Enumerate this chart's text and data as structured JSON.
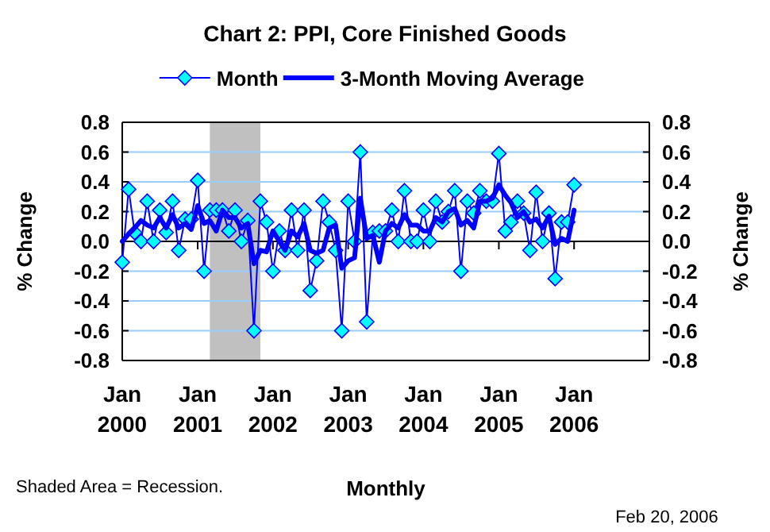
{
  "chart_data": {
    "type": "line",
    "title": "Chart 2: PPI, Core Finished Goods",
    "x": [
      "2000-01",
      "2000-02",
      "2000-03",
      "2000-04",
      "2000-05",
      "2000-06",
      "2000-07",
      "2000-08",
      "2000-09",
      "2000-10",
      "2000-11",
      "2000-12",
      "2001-01",
      "2001-02",
      "2001-03",
      "2001-04",
      "2001-05",
      "2001-06",
      "2001-07",
      "2001-08",
      "2001-09",
      "2001-10",
      "2001-11",
      "2001-12",
      "2002-01",
      "2002-02",
      "2002-03",
      "2002-04",
      "2002-05",
      "2002-06",
      "2002-07",
      "2002-08",
      "2002-09",
      "2002-10",
      "2002-11",
      "2002-12",
      "2003-01",
      "2003-02",
      "2003-03",
      "2003-04",
      "2003-05",
      "2003-06",
      "2003-07",
      "2003-08",
      "2003-09",
      "2003-10",
      "2003-11",
      "2003-12",
      "2004-01",
      "2004-02",
      "2004-03",
      "2004-04",
      "2004-05",
      "2004-06",
      "2004-07",
      "2004-08",
      "2004-09",
      "2004-10",
      "2004-11",
      "2004-12",
      "2005-01",
      "2005-02",
      "2005-03",
      "2005-04",
      "2005-05",
      "2005-06",
      "2005-07",
      "2005-08",
      "2005-09",
      "2005-10",
      "2005-11",
      "2005-12",
      "2006-01"
    ],
    "series": [
      {
        "name": "Month",
        "color": "#0000ff",
        "marker": "diamond",
        "values": [
          -0.14,
          0.35,
          0.06,
          0.0,
          0.27,
          0.0,
          0.21,
          0.06,
          0.27,
          -0.06,
          0.15,
          0.15,
          0.41,
          -0.2,
          0.21,
          0.21,
          0.21,
          0.07,
          0.21,
          0.0,
          0.14,
          -0.6,
          0.27,
          0.13,
          -0.2,
          0.07,
          -0.06,
          0.21,
          -0.06,
          0.21,
          -0.33,
          -0.13,
          0.27,
          0.13,
          -0.06,
          -0.6,
          0.27,
          0.0,
          0.6,
          -0.54,
          0.06,
          0.07,
          0.07,
          0.21,
          0.0,
          0.34,
          0.0,
          0.0,
          0.21,
          0.0,
          0.27,
          0.13,
          0.2,
          0.34,
          -0.2,
          0.27,
          0.19,
          0.34,
          0.27,
          0.27,
          0.59,
          0.07,
          0.13,
          0.27,
          0.19,
          -0.06,
          0.33,
          0.0,
          0.19,
          -0.25,
          0.13,
          0.13,
          0.38
        ]
      },
      {
        "name": "3-Month Moving Average",
        "color": "#0000ff",
        "marker": "none",
        "values": [
          0.0,
          0.05,
          0.09,
          0.14,
          0.11,
          0.09,
          0.16,
          0.09,
          0.18,
          0.09,
          0.12,
          0.08,
          0.24,
          0.12,
          0.14,
          0.07,
          0.21,
          0.16,
          0.16,
          0.09,
          0.12,
          -0.15,
          -0.06,
          -0.07,
          0.07,
          0.0,
          -0.06,
          0.07,
          0.03,
          0.12,
          -0.06,
          -0.08,
          -0.06,
          0.09,
          0.11,
          -0.18,
          -0.13,
          -0.11,
          0.29,
          0.02,
          0.04,
          -0.14,
          0.07,
          0.12,
          0.09,
          0.18,
          0.11,
          0.11,
          0.07,
          0.07,
          0.16,
          0.13,
          0.2,
          0.22,
          0.11,
          0.14,
          0.09,
          0.27,
          0.27,
          0.29,
          0.38,
          0.31,
          0.26,
          0.16,
          0.2,
          0.13,
          0.15,
          0.09,
          0.17,
          -0.02,
          0.02,
          0.0,
          0.21
        ]
      }
    ],
    "xlabel": "Monthly",
    "ylabel": "% Change",
    "y2label": "% Change",
    "xlim": [
      "2000-01",
      "2007-01"
    ],
    "xticks": [
      {
        "value": "2000-01",
        "label": "Jan 2000"
      },
      {
        "value": "2001-01",
        "label": "Jan 2001"
      },
      {
        "value": "2002-01",
        "label": "Jan 2002"
      },
      {
        "value": "2003-01",
        "label": "Jan 2003"
      },
      {
        "value": "2004-01",
        "label": "Jan 2004"
      },
      {
        "value": "2005-01",
        "label": "Jan 2005"
      },
      {
        "value": "2006-01",
        "label": "Jan 2006"
      }
    ],
    "ylim": [
      -0.8,
      0.8
    ],
    "yticks": [
      -0.8,
      -0.6,
      -0.4,
      -0.2,
      {
        "value": 0,
        "label": "0.0"
      },
      0.2,
      0.4,
      0.6,
      0.8
    ],
    "y2lim": [
      -0.8,
      0.8
    ],
    "y2ticks": [
      -0.8,
      -0.6,
      -0.4,
      -0.2,
      {
        "value": 0,
        "label": "0.0"
      },
      0.2,
      0.4,
      0.6,
      0.8
    ],
    "bands": [
      {
        "axis": "x",
        "from": "2001-03",
        "to": "2001-11",
        "color": "#c0c0c0"
      }
    ],
    "grid": "y",
    "legend": "top",
    "line_style": "solid",
    "annotations": [
      "Shaded Area = Recession.",
      "Feb 20, 2006"
    ]
  }
}
